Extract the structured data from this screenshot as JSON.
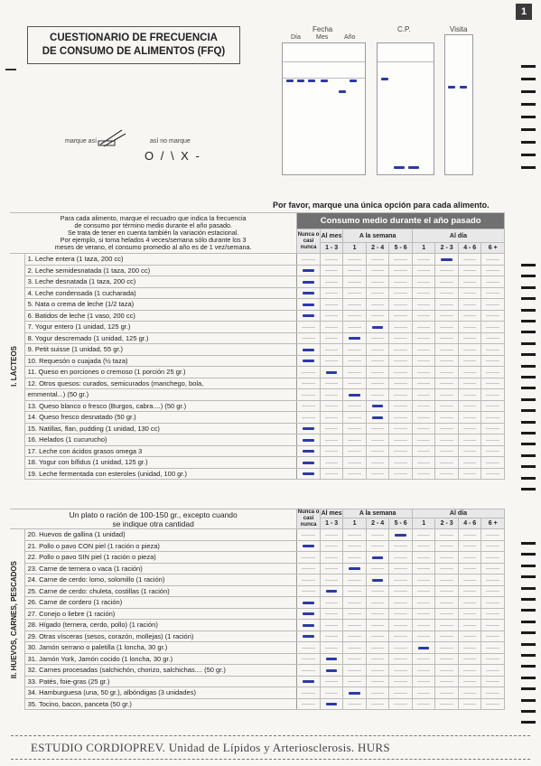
{
  "page_number": "1",
  "title_line1": "CUESTIONARIO DE FRECUENCIA",
  "title_line2": "DE CONSUMO DE ALIMENTOS (FFQ)",
  "header": {
    "fecha": "Fecha",
    "dia": "Día",
    "mes": "Mes",
    "ano": "Año",
    "cp": "C.P.",
    "visita": "Visita"
  },
  "legend": {
    "marque_asi": "marque así",
    "asi_no_marque": "así no marque",
    "bad_marks": "O / \\ X -"
  },
  "instruction": "Por favor, marque una única opción para cada alimento.",
  "intro_text": [
    "Para cada alimento, marque el recuadro que indica la frecuencia",
    "de consumo por término medio durante el año pasado.",
    "Se trata de tener en cuenta también la variación estacional.",
    "Por ejemplo, si toma helados 4 veces/semana sólo durante los 3",
    "meses de verano, el consumo promedio al año es de 1 vez/semana."
  ],
  "consumo_header": "Consumo medio durante el año pasado",
  "col_groups": {
    "nunca": "Nunca o casi nunca",
    "al_mes": "Al mes",
    "a_la_semana": "A la semana",
    "al_dia": "Al día"
  },
  "col_labels": [
    "",
    "1 - 3",
    "1",
    "2 - 4",
    "5 - 6",
    "1",
    "2 - 3",
    "4 - 6",
    "6 +"
  ],
  "section1": {
    "side": "I. LÁCTEOS",
    "items": [
      {
        "text": "1. Leche entera (1 taza, 200 cc)",
        "mark": 6
      },
      {
        "text": "2. Leche semidesnatada (1 taza, 200 cc)",
        "mark": 0
      },
      {
        "text": "3. Leche desnatada (1 taza, 200 cc)",
        "mark": 0
      },
      {
        "text": "4. Leche condensada (1 cucharada)",
        "mark": 0
      },
      {
        "text": "5. Nata o crema de leche (1/2 taza)",
        "mark": 0
      },
      {
        "text": "6. Batidos de leche (1 vaso, 200 cc)",
        "mark": 0
      },
      {
        "text": "7. Yogur entero (1 unidad, 125 gr.)",
        "mark": 3
      },
      {
        "text": "8. Yogur descremado (1 unidad, 125 gr.)",
        "mark": 2
      },
      {
        "text": "9. Petit suisse (1 unidad, 55 gr.)",
        "mark": 0
      },
      {
        "text": "10. Requesón o cuajada (½ taza)",
        "mark": 0
      },
      {
        "text": "11. Queso en porciones o cremoso (1 porción 25 gr.)",
        "mark": 1
      },
      {
        "text": "12. Otros quesos: curados, semicurados (manchego, bola,",
        "mark": -1
      },
      {
        "text": "      emmental...) (50 gr.)",
        "mark": 2
      },
      {
        "text": "13. Queso blanco o fresco (Burgos, cabra....) (50 gr.)",
        "mark": 3
      },
      {
        "text": "14. Queso fresco desnatado (50 gr.)",
        "mark": 3
      },
      {
        "text": "15. Natillas, flan, pudding (1 unidad, 130 cc)",
        "mark": 0
      },
      {
        "text": "16. Helados (1 cucurucho)",
        "mark": 0
      },
      {
        "text": "17. Leche con ácidos grasos omega 3",
        "mark": 0
      },
      {
        "text": "18. Yogur con bífidus (1 unidad, 125 gr.)",
        "mark": 0
      },
      {
        "text": "19. Leche fermentada con esteroles (unidad, 100 gr.)",
        "mark": 0
      }
    ]
  },
  "section2": {
    "header": [
      "Un plato o ración de 100-150 gr., excepto cuando",
      "se indique otra cantidad"
    ],
    "side": "II. HUEVOS, CARNES, PESCADOS",
    "items": [
      {
        "text": "20. Huevos de gallina (1 unidad)",
        "mark": 4
      },
      {
        "text": "21. Pollo o pavo CON piel (1 ración o pieza)",
        "mark": 0
      },
      {
        "text": "22. Pollo o pavo SIN piel (1 ración o pieza)",
        "mark": 3
      },
      {
        "text": "23. Carne de ternera o vaca (1 ración)",
        "mark": 2
      },
      {
        "text": "24. Carne de cerdo: lomo, solomillo (1 ración)",
        "mark": 3
      },
      {
        "text": "25. Carne de cerdo: chuleta, costillas (1 ración)",
        "mark": 1
      },
      {
        "text": "26. Carne de cordero (1 ración)",
        "mark": 0
      },
      {
        "text": "27. Conejo o liebre (1 ración)",
        "mark": 0
      },
      {
        "text": "28. Hígado (ternera, cerdo, pollo) (1 ración)",
        "mark": 0
      },
      {
        "text": "29. Otras vísceras (sesos, corazón, mollejas) (1 ración)",
        "mark": 0
      },
      {
        "text": "30. Jamón serrano o paletilla (1 loncha, 30 gr.)",
        "mark": 5
      },
      {
        "text": "31. Jamón York, Jamón cocido (1 loncha, 30 gr.)",
        "mark": 1
      },
      {
        "text": "32. Carnes procesadas (salchichón, chorizo, salchichas.... (50 gr.)",
        "mark": 1
      },
      {
        "text": "33. Patés, foie-gras (25 gr.)",
        "mark": 0
      },
      {
        "text": "34. Hamburguesa (una, 50 gr.), albóndigas (3 unidades)",
        "mark": 2
      },
      {
        "text": "35. Tocino, bacon, panceta (50 gr.)",
        "mark": 1
      }
    ]
  },
  "footer": "ESTUDIO CORDIOPREV.  Unidad de Lípidos y Arteriosclerosis. HURS"
}
